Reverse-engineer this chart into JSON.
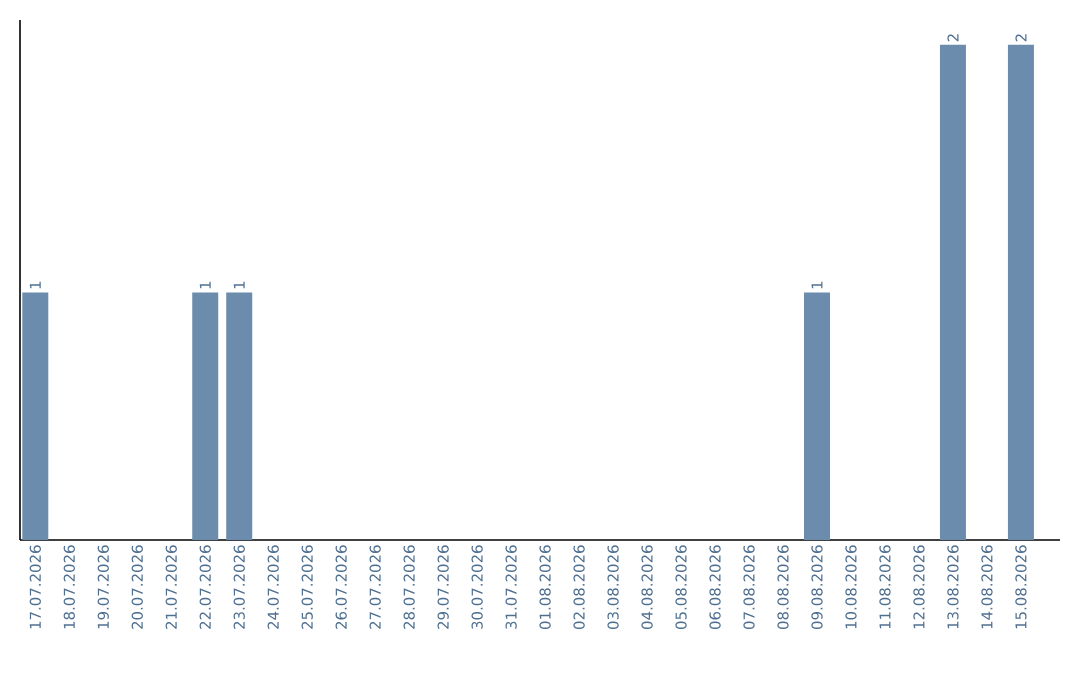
{
  "chart_data": {
    "type": "bar",
    "categories": [
      "17.07.2026",
      "18.07.2026",
      "19.07.2026",
      "20.07.2026",
      "21.07.2026",
      "22.07.2026",
      "23.07.2026",
      "24.07.2026",
      "25.07.2026",
      "26.07.2026",
      "27.07.2026",
      "28.07.2026",
      "29.07.2026",
      "30.07.2026",
      "31.07.2026",
      "01.08.2026",
      "02.08.2026",
      "03.08.2026",
      "04.08.2026",
      "05.08.2026",
      "06.08.2026",
      "07.08.2026",
      "08.08.2026",
      "09.08.2026",
      "10.08.2026",
      "11.08.2026",
      "12.08.2026",
      "13.08.2026",
      "14.08.2026",
      "15.08.2026"
    ],
    "values": [
      1,
      0,
      0,
      0,
      0,
      1,
      1,
      0,
      0,
      0,
      0,
      0,
      0,
      0,
      0,
      0,
      0,
      0,
      0,
      0,
      0,
      0,
      0,
      1,
      0,
      0,
      0,
      2,
      0,
      2
    ],
    "value_labels": [
      "1",
      null,
      null,
      null,
      null,
      "1",
      "1",
      null,
      null,
      null,
      null,
      null,
      null,
      null,
      null,
      null,
      null,
      null,
      null,
      null,
      null,
      null,
      null,
      "1",
      null,
      null,
      null,
      "2",
      null,
      "2"
    ],
    "color": "#6b8cac",
    "ylim": [
      0,
      2.1
    ],
    "tick_labels": "x"
  }
}
